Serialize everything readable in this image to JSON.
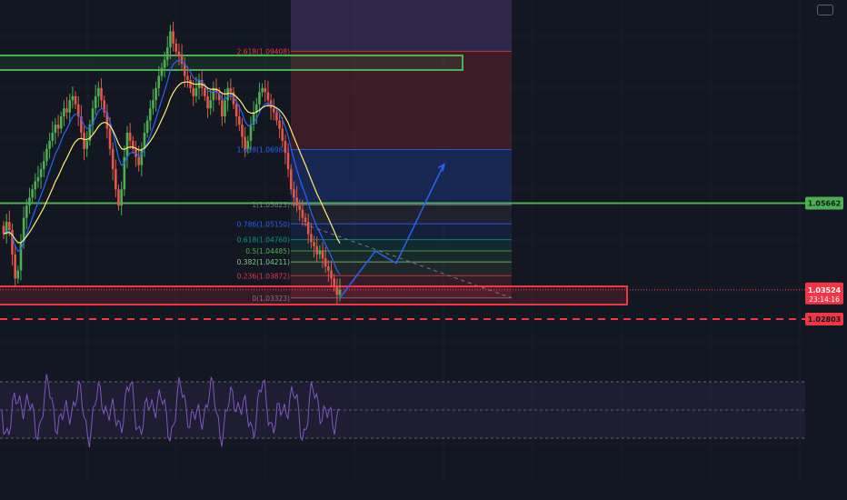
{
  "colors": {
    "background": "#131722",
    "grid": "#1b1f2b",
    "green": "#4caf50",
    "red": "#f23645",
    "blue": "#2962ff",
    "yellow": "#ffeb70",
    "purple": "#7e57c2",
    "up_candle": "#4caf50",
    "down_candle": "#e25745"
  },
  "chart_data": {
    "type": "candlestick",
    "price_range": [
      1.026,
      1.1
    ],
    "fib_levels": [
      {
        "level": "2.618",
        "price": 1.09408,
        "label": "2.618(1.09408)",
        "color": "#f23645"
      },
      {
        "level": "1.618",
        "price": 1.06984,
        "label": "1.618(1.06984)",
        "color": "#2962ff"
      },
      {
        "level": "1",
        "price": 1.05623,
        "label": "1(1.05623)",
        "color": "#787b86"
      },
      {
        "level": "0.786",
        "price": 1.0515,
        "label": "0.786(1.05150)",
        "color": "#2962ff"
      },
      {
        "level": "0.618",
        "price": 1.0476,
        "label": "0.618(1.04760)",
        "color": "#089981"
      },
      {
        "level": "0.5",
        "price": 1.04485,
        "label": "0.5(1.04485)",
        "color": "#4caf50"
      },
      {
        "level": "0.382",
        "price": 1.04211,
        "label": "0.382(1.04211)",
        "color": "#81c784"
      },
      {
        "level": "0.236",
        "price": 1.03872,
        "label": "0.236(1.03872)",
        "color": "#f23645"
      },
      {
        "level": "0",
        "price": 1.03323,
        "label": "0(1.03323)",
        "color": "#787b86"
      }
    ],
    "horizontal_lines": [
      {
        "price": 1.05662,
        "label": "1.05662",
        "color": "#4caf50",
        "style": "solid"
      },
      {
        "price": 1.02803,
        "label": "1.02803",
        "color": "#f23645",
        "style": "dashed"
      }
    ],
    "current_price": {
      "price": 1.03524,
      "label": "1.03524",
      "countdown": "23:14:16",
      "color": "#f23645"
    },
    "close_series": [
      1.049,
      1.052,
      1.05,
      1.044,
      1.038,
      1.04,
      1.047,
      1.053,
      1.056,
      1.058,
      1.06,
      1.062,
      1.063,
      1.065,
      1.067,
      1.07,
      1.072,
      1.074,
      1.076,
      1.075,
      1.078,
      1.08,
      1.079,
      1.082,
      1.083,
      1.081,
      1.078,
      1.074,
      1.07,
      1.072,
      1.076,
      1.08,
      1.083,
      1.085,
      1.082,
      1.079,
      1.075,
      1.07,
      1.065,
      1.06,
      1.056,
      1.06,
      1.068,
      1.074,
      1.072,
      1.07,
      1.068,
      1.066,
      1.07,
      1.074,
      1.077,
      1.08,
      1.082,
      1.085,
      1.088,
      1.09,
      1.092,
      1.095,
      1.099,
      1.096,
      1.094,
      1.093,
      1.091,
      1.088,
      1.087,
      1.085,
      1.083,
      1.085,
      1.087,
      1.085,
      1.083,
      1.08,
      1.082,
      1.085,
      1.084,
      1.082,
      1.078,
      1.082,
      1.085,
      1.084,
      1.081,
      1.078,
      1.076,
      1.073,
      1.07,
      1.072,
      1.076,
      1.079,
      1.081,
      1.084,
      1.085,
      1.084,
      1.082,
      1.08,
      1.079,
      1.077,
      1.075,
      1.072,
      1.069,
      1.065,
      1.06,
      1.058,
      1.056,
      1.055,
      1.053,
      1.052,
      1.049,
      1.047,
      1.046,
      1.044,
      1.045,
      1.043,
      1.041,
      1.04,
      1.038,
      1.036,
      1.034,
      1.0352
    ]
  },
  "projection": {
    "path_prices": [
      1.03323,
      1.0448,
      1.0418,
      1.066
    ],
    "dashed_trend_prices": [
      1.0515,
      1.03323
    ]
  },
  "icons": {
    "menu": "menu-icon"
  }
}
